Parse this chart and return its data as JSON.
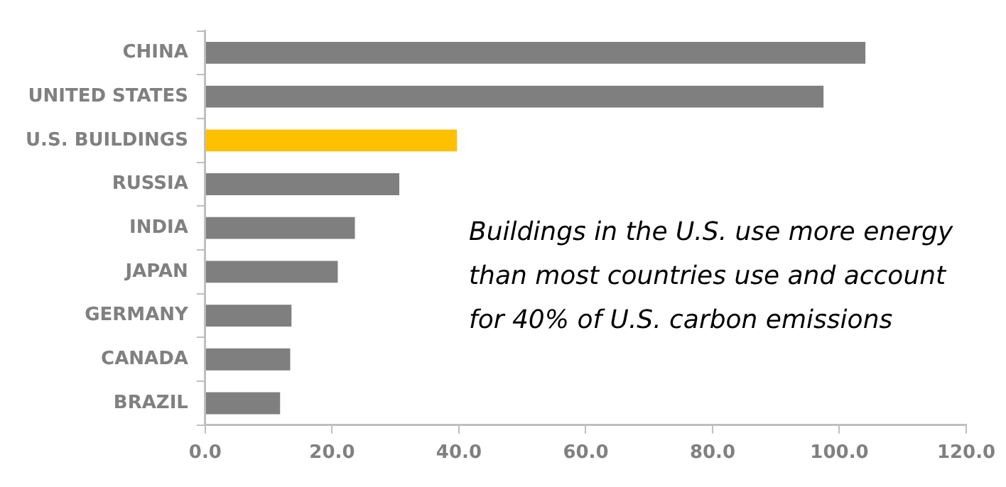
{
  "chart_data": {
    "type": "bar",
    "orientation": "horizontal",
    "categories": [
      "CHINA",
      "UNITED STATES",
      "U.S. BUILDINGS",
      "RUSSIA",
      "INDIA",
      "JAPAN",
      "GERMANY",
      "CANADA",
      "BRAZIL"
    ],
    "values": [
      104.1,
      97.5,
      39.7,
      30.6,
      23.6,
      20.9,
      13.6,
      13.4,
      11.8
    ],
    "colors": [
      "#7f7f7f",
      "#7f7f7f",
      "#ffc000",
      "#7f7f7f",
      "#7f7f7f",
      "#7f7f7f",
      "#7f7f7f",
      "#7f7f7f",
      "#7f7f7f"
    ],
    "xlim": [
      0,
      120
    ],
    "xticks": [
      {
        "value": 0,
        "label": "0.0"
      },
      {
        "value": 20,
        "label": "20.0"
      },
      {
        "value": 40,
        "label": "40.0"
      },
      {
        "value": 60,
        "label": "60.0"
      },
      {
        "value": 80,
        "label": "80.0"
      },
      {
        "value": 100,
        "label": "100.0"
      },
      {
        "value": 120,
        "label": "120.0"
      }
    ],
    "grid": false,
    "legend": false,
    "annotations": [
      "Buildings in the U.S. use more energy than most countries use and account for 40% of U.S. carbon emissions"
    ]
  }
}
